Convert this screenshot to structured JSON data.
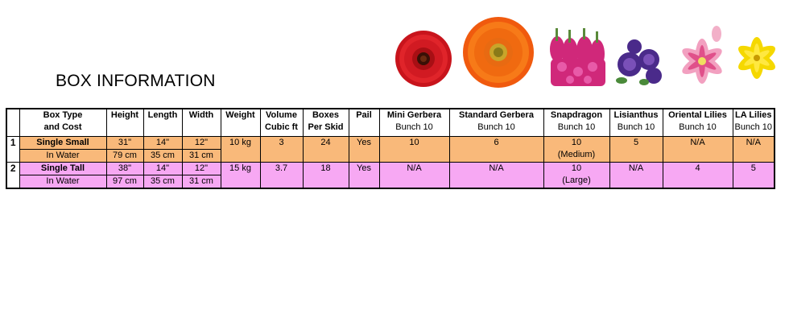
{
  "title": "BOX INFORMATION",
  "headers": {
    "box_type": [
      "Box  Type",
      "and Cost"
    ],
    "height": "Height",
    "length": "Length",
    "width": "Width",
    "weight": "Weight",
    "volume": [
      "Volume",
      "Cubic ft"
    ],
    "boxes": [
      "Boxes",
      "Per Skid"
    ],
    "pail": "Pail",
    "mini_gerbera": [
      "Mini Gerbera",
      "Bunch 10"
    ],
    "standard_gerbera": [
      "Standard Gerbera",
      "Bunch 10"
    ],
    "snapdragon": [
      "Snapdragon",
      "Bunch 10"
    ],
    "lisianthus": [
      "Lisianthus",
      "Bunch 10"
    ],
    "oriental_lilies": [
      "Oriental Lilies",
      "Bunch 10"
    ],
    "la_lilies": [
      "LA Lilies",
      "Bunch 10"
    ]
  },
  "rows": [
    {
      "num": "1",
      "box_type": [
        "Single Small",
        "In Water"
      ],
      "height": [
        "31\"",
        "79 cm"
      ],
      "length": [
        "14\"",
        "35 cm"
      ],
      "width": [
        "12\"",
        "31 cm"
      ],
      "weight": "10 kg",
      "volume": "3",
      "boxes": "24",
      "pail": "Yes",
      "mini_gerbera": "10",
      "standard_gerbera": "6",
      "snapdragon": [
        "10",
        "(Medium)"
      ],
      "lisianthus": "5",
      "oriental_lilies": "N/A",
      "la_lilies": "N/A"
    },
    {
      "num": "2",
      "box_type": [
        "Single Tall",
        "In Water"
      ],
      "height": [
        "38\"",
        "97 cm"
      ],
      "length": [
        "14\"",
        "35 cm"
      ],
      "width": [
        "12\"",
        "31 cm"
      ],
      "weight": "15 kg",
      "volume": "3.7",
      "boxes": "18",
      "pail": "Yes",
      "mini_gerbera": "N/A",
      "standard_gerbera": "N/A",
      "snapdragon": [
        "10",
        "(Large)"
      ],
      "lisianthus": "N/A",
      "oriental_lilies": "4",
      "la_lilies": "5"
    }
  ],
  "colors": {
    "row1": "#f9b97a",
    "row2": "#f7a8f3"
  },
  "images": [
    "mini-gerbera-flower",
    "standard-gerbera-flower",
    "snapdragon-flower",
    "lisianthus-flower",
    "oriental-lily-flower",
    "la-lily-flower"
  ]
}
